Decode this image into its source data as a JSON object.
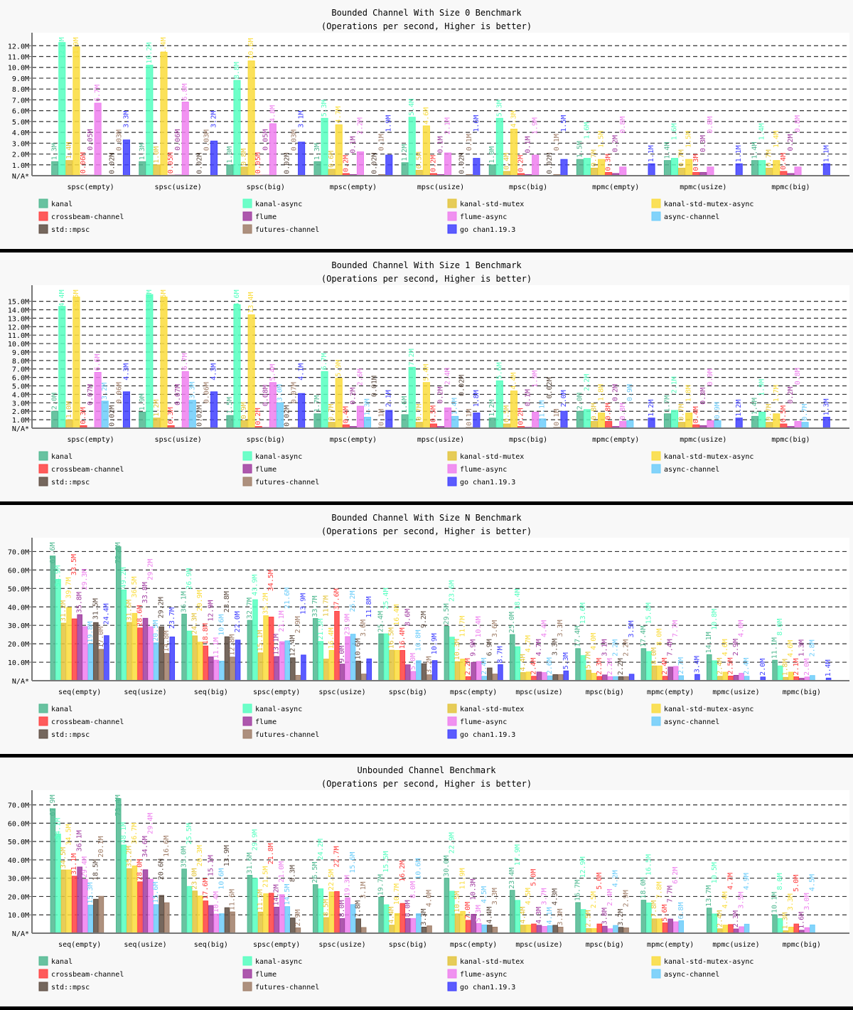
{
  "colors": {
    "kanal": "#4fb890",
    "kanal-async": "#55ffc0",
    "kanal-std-mutex": "#e3c43c",
    "kanal-std-mutex-async": "#fadc3c",
    "crossbeam-channel": "#ff4040",
    "flume": "#a03ca0",
    "flume-async": "#ee7fee",
    "async-channel": "#6dcdfa",
    "std::mpsc": "#5e4d42",
    "futures-channel": "#a07e68",
    "go chan1.19.3": "#4040ff"
  },
  "legend_order": [
    "kanal",
    "kanal-async",
    "kanal-std-mutex",
    "kanal-std-mutex-async",
    "crossbeam-channel",
    "flume",
    "flume-async",
    "async-channel",
    "std::mpsc",
    "futures-channel",
    "go chan1.19.3"
  ],
  "chart_data": [
    {
      "type": "bar",
      "title": "Bounded Channel With Size 0 Benchmark",
      "subtitle": "(Operations per second, Higher is better)",
      "zero_label": "N/A*",
      "yticks": [
        "1.0M",
        "2.0M",
        "3.0M",
        "4.0M",
        "5.0M",
        "6.0M",
        "7.0M",
        "8.0M",
        "9.0M",
        "10.0M",
        "11.0M",
        "12.0M"
      ],
      "ylim": [
        0,
        13.2
      ],
      "unit": "M",
      "grid": true,
      "legend": "bottom",
      "categories": [
        "spsc(empty)",
        "spsc(usize)",
        "spsc(big)",
        "mpsc(empty)",
        "mpsc(usize)",
        "mpsc(big)",
        "mpmc(empty)",
        "mpmc(usize)",
        "mpmc(big)"
      ],
      "series": [
        {
          "name": "kanal",
          "values": [
            1.3,
            1.3,
            1.0,
            1.3,
            1.2,
            1.0,
            1.5,
            1.4,
            1.4
          ]
        },
        {
          "name": "kanal-async",
          "values": [
            12.3,
            10.2,
            8.8,
            5.3,
            5.4,
            5.3,
            1.6,
            1.6,
            1.4
          ]
        },
        {
          "name": "kanal-std-mutex",
          "values": [
            1.4,
            1.0,
            0.8,
            0.6,
            0.5,
            0.4,
            0.7,
            0.7,
            0.7
          ]
        },
        {
          "name": "kanal-std-mutex-async",
          "values": [
            11.9,
            11.4,
            10.6,
            4.7,
            4.6,
            4.3,
            1.5,
            1.5,
            1.4
          ]
        },
        {
          "name": "crossbeam-channel",
          "values": [
            0.06,
            0.05,
            0.05,
            0.2,
            0.2,
            0.2,
            0.3,
            0.3,
            0.4
          ]
        },
        {
          "name": "flume",
          "values": [
            0.05,
            0.06,
            0.05,
            0.1,
            0.1,
            0.1,
            0.2,
            0.3,
            0.2
          ]
        },
        {
          "name": "flume-async",
          "values": [
            6.7,
            6.8,
            4.8,
            2.2,
            2.1,
            1.9,
            0.8,
            0.8,
            0.8
          ]
        },
        {
          "name": "async-channel",
          "values": [
            null,
            null,
            null,
            null,
            null,
            null,
            null,
            null,
            null
          ]
        },
        {
          "name": "std::mpsc",
          "values": [
            0.02,
            0.02,
            0.02,
            0.02,
            0.02,
            0.02,
            null,
            null,
            null
          ]
        },
        {
          "name": "futures-channel",
          "values": [
            0.03,
            0.03,
            0.03,
            0.1,
            0.1,
            0.1,
            null,
            null,
            null
          ]
        },
        {
          "name": "go chan1.19.3",
          "values": [
            3.3,
            3.2,
            3.1,
            1.9,
            1.6,
            1.5,
            1.1,
            1.1,
            1.1
          ]
        }
      ]
    },
    {
      "type": "bar",
      "title": "Bounded Channel With Size 1 Benchmark",
      "subtitle": "(Operations per second, Higher is better)",
      "zero_label": "N/A*",
      "yticks": [
        "1.0M",
        "2.0M",
        "3.0M",
        "4.0M",
        "5.0M",
        "6.0M",
        "7.0M",
        "8.0M",
        "9.0M",
        "10.0M",
        "11.0M",
        "12.0M",
        "13.0M",
        "14.0M",
        "15.0M"
      ],
      "ylim": [
        0,
        16.9
      ],
      "unit": "M",
      "grid": true,
      "legend": "bottom",
      "categories": [
        "spsc(empty)",
        "spsc(usize)",
        "spsc(big)",
        "mpsc(empty)",
        "mpsc(usize)",
        "mpsc(big)",
        "mpmc(empty)",
        "mpmc(usize)",
        "mpmc(big)"
      ],
      "series": [
        {
          "name": "kanal",
          "values": [
            2.0,
            1.9,
            1.5,
            1.7,
            1.6,
            1.2,
            2.0,
            1.7,
            1.4
          ]
        },
        {
          "name": "kanal-async",
          "values": [
            14.4,
            15.8,
            14.6,
            6.7,
            7.2,
            5.6,
            2.2,
            2.1,
            1.9
          ]
        },
        {
          "name": "kanal-std-mutex",
          "values": [
            1.0,
            1.2,
            0.9,
            0.7,
            0.7,
            0.5,
            0.8,
            0.7,
            0.7
          ]
        },
        {
          "name": "kanal-std-mutex-async",
          "values": [
            15.5,
            15.5,
            13.4,
            5.9,
            5.4,
            4.4,
            1.8,
            1.8,
            1.7
          ]
        },
        {
          "name": "crossbeam-channel",
          "values": [
            0.3,
            0.3,
            0.2,
            0.4,
            0.5,
            0.2,
            0.8,
            0.4,
            0.5
          ]
        },
        {
          "name": "flume",
          "values": [
            0.07,
            0.07,
            0.08,
            0.2,
            0.2,
            0.1,
            0.2,
            0.3,
            0.2
          ]
        },
        {
          "name": "flume-async",
          "values": [
            6.6,
            6.7,
            5.4,
            2.6,
            2.4,
            1.9,
            0.8,
            0.9,
            0.8
          ]
        },
        {
          "name": "async-channel",
          "values": [
            3.2,
            3.3,
            3.0,
            1.3,
            1.4,
            1.1,
            0.9,
            0.9,
            0.7
          ]
        },
        {
          "name": "std::mpsc",
          "values": [
            0.02,
            0.02,
            0.02,
            0.01,
            0.02,
            0.02,
            null,
            null,
            null
          ]
        },
        {
          "name": "futures-channel",
          "values": [
            0.06,
            0.06,
            0.07,
            0.1,
            0.1,
            0.1,
            null,
            null,
            null
          ]
        },
        {
          "name": "go chan1.19.3",
          "values": [
            4.3,
            4.3,
            4.1,
            2.1,
            1.8,
            2.0,
            1.2,
            1.2,
            1.3
          ]
        }
      ]
    },
    {
      "type": "bar",
      "title": "Bounded Channel With Size N Benchmark",
      "subtitle": "(Operations per second, Higher is better)",
      "zero_label": "N/A*",
      "yticks": [
        "10.0M",
        "20.0M",
        "30.0M",
        "40.0M",
        "50.0M",
        "60.0M",
        "70.0M"
      ],
      "ylim": [
        0,
        77.5
      ],
      "unit": "M",
      "grid": true,
      "legend": "bottom",
      "categories": [
        "seq(empty)",
        "seq(usize)",
        "seq(big)",
        "spsc(empty)",
        "spsc(usize)",
        "spsc(big)",
        "mpsc(empty)",
        "mpsc(usize)",
        "mpsc(big)",
        "mpmc(empty)",
        "mpmc(usize)",
        "mpmc(big)"
      ],
      "series": [
        {
          "name": "kanal",
          "values": [
            67.6,
            72.6,
            36.1,
            32.7,
            33.7,
            25.4,
            29.5,
            25.0,
            17.4,
            17.4,
            14.1,
            11.1
          ]
        },
        {
          "name": "kanal-async",
          "values": [
            54.9,
            49.2,
            26.9,
            43.9,
            21.3,
            25.4,
            23.6,
            18.4,
            13.6,
            15.8,
            10.8,
            8.0
          ]
        },
        {
          "name": "kanal-std-mutex",
          "values": [
            31.2,
            31.6,
            24.3,
            15.1,
            11.7,
            16.5,
            10.3,
            4.4,
            5.7,
            8.0,
            2.4,
            1.8
          ]
        },
        {
          "name": "kanal-std-mutex-async",
          "values": [
            39.7,
            36.5,
            20.9,
            35.2,
            16.4,
            16.4,
            11.7,
            4.7,
            4.0,
            8.0,
            4.6,
            4.6
          ]
        },
        {
          "name": "crossbeam-channel",
          "values": [
            33.5,
            28.6,
            18.8,
            34.5,
            37.6,
            16.4,
            2.2,
            2.4,
            2.3,
            2.4,
            2.5,
            2.1
          ]
        },
        {
          "name": "flume",
          "values": [
            35.8,
            33.8,
            12.9,
            13.1,
            9.0,
            8.6,
            9.9,
            4.7,
            3.1,
            7.4,
            2.9,
            1.3
          ]
        },
        {
          "name": "flume-async",
          "values": [
            29.3,
            29.2,
            11.1,
            21.1,
            23.9,
            5.0,
            10.4,
            4.4,
            2.2,
            7.7,
            4.0,
            2.0
          ]
        },
        {
          "name": "async-channel",
          "values": [
            19.8,
            20.5,
            10.6,
            21.6,
            25.2,
            10.8,
            2.4,
            2.6,
            2.2,
            2.7,
            2.4,
            2.8
          ]
        },
        {
          "name": "std::mpsc",
          "values": [
            31.5,
            29.2,
            23.8,
            12.4,
            10.6,
            9.2,
            6.9,
            3.3,
            2.2,
            null,
            null,
            null
          ]
        },
        {
          "name": "futures-channel",
          "values": [
            17.0,
            14.8,
            12.8,
            2.9,
            3.6,
            3.2,
            3.6,
            3.3,
            2.2,
            null,
            null,
            null
          ]
        },
        {
          "name": "go chan1.19.3",
          "values": [
            24.4,
            23.7,
            22.0,
            13.9,
            11.8,
            10.9,
            8.7,
            5.3,
            3.5,
            3.4,
            2.0,
            1.4
          ]
        }
      ]
    },
    {
      "type": "bar",
      "title": "Unbounded Channel Benchmark",
      "subtitle": "(Operations per second, Higher is better)",
      "zero_label": "N/A*",
      "yticks": [
        "10.0M",
        "20.0M",
        "30.0M",
        "40.0M",
        "50.0M",
        "60.0M",
        "70.0M"
      ],
      "ylim": [
        0,
        78
      ],
      "unit": "M",
      "grid": true,
      "legend": "bottom",
      "categories": [
        "seq(empty)",
        "seq(usize)",
        "seq(big)",
        "spsc(empty)",
        "spsc(usize)",
        "spsc(big)",
        "mpsc(empty)",
        "mpsc(usize)",
        "mpsc(big)",
        "mpmc(empty)",
        "mpmc(usize)",
        "mpmc(big)"
      ],
      "series": [
        {
          "name": "kanal",
          "values": [
            67.9,
            73.4,
            35.0,
            31.6,
            26.5,
            19.7,
            30.0,
            23.4,
            16.7,
            18.0,
            13.7,
            10.1
          ]
        },
        {
          "name": "kanal-async",
          "values": [
            54.1,
            48.1,
            25.5,
            29.9,
            24.2,
            15.5,
            22.9,
            17.9,
            12.9,
            16.5,
            10.5,
            8.0
          ]
        },
        {
          "name": "kanal-std-mutex",
          "values": [
            34.5,
            35.2,
            23.0,
            11.5,
            8.5,
            4.4,
            10.5,
            4.4,
            2.5,
            7.8,
            2.4,
            1.3
          ]
        },
        {
          "name": "kanal-std-mutex-async",
          "values": [
            34.5,
            36.7,
            20.3,
            21.5,
            22.5,
            10.7,
            11.9,
            4.5,
            2.5,
            7.8,
            4.4,
            3.3
          ]
        },
        {
          "name": "crossbeam-channel",
          "values": [
            31.1,
            28.0,
            17.6,
            21.8,
            22.7,
            16.2,
            7.0,
            5.0,
            5.0,
            5.6,
            4.7,
            5.0
          ]
        },
        {
          "name": "flume",
          "values": [
            36.1,
            34.6,
            15.1,
            14.2,
            8.0,
            8.0,
            10.3,
            4.3,
            3.8,
            7.7,
            2.3,
            1.6
          ]
        },
        {
          "name": "flume-async",
          "values": [
            29.4,
            29.4,
            10.4,
            21.0,
            19.3,
            8.0,
            5.3,
            3.7,
            2.4,
            6.2,
            3.5,
            3.0
          ]
        },
        {
          "name": "async-channel",
          "values": [
            15.3,
            15.6,
            10.6,
            14.5,
            15.6,
            10.6,
            4.5,
            4.1,
            4.2,
            6.8,
            4.9,
            4.5
          ]
        },
        {
          "name": "std::mpsc",
          "values": [
            18.5,
            20.6,
            13.9,
            8.3,
            7.8,
            3.3,
            4.4,
            4.3,
            3.2,
            null,
            null,
            null
          ]
        },
        {
          "name": "futures-channel",
          "values": [
            20.1,
            16.6,
            11.6,
            2.9,
            3.1,
            4.0,
            3.3,
            3.3,
            2.9,
            null,
            null,
            null
          ]
        },
        {
          "name": "go chan1.19.3",
          "values": [
            null,
            null,
            null,
            null,
            null,
            null,
            null,
            null,
            null,
            null,
            null,
            null
          ]
        }
      ]
    }
  ]
}
